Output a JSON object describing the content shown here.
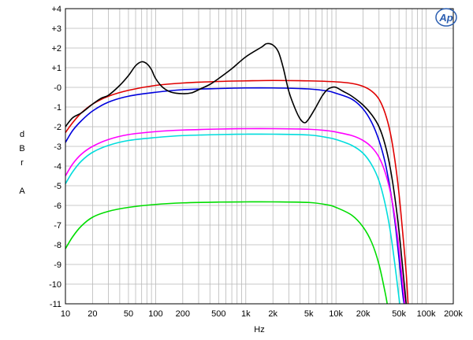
{
  "chart_data": {
    "type": "line",
    "title": "",
    "xlabel": "Hz",
    "ylabel": "dBr A",
    "ylabel_chars": [
      "d",
      "B",
      "r",
      "",
      "A"
    ],
    "logo": "Ap",
    "x_scale": "log",
    "xlim": [
      10,
      200000
    ],
    "ylim": [
      -11,
      4
    ],
    "grid": true,
    "x_ticks": [
      {
        "value": 10,
        "label": "10"
      },
      {
        "value": 20,
        "label": "20"
      },
      {
        "value": 50,
        "label": "50"
      },
      {
        "value": 100,
        "label": "100"
      },
      {
        "value": 200,
        "label": "200"
      },
      {
        "value": 500,
        "label": "500"
      },
      {
        "value": 1000,
        "label": "1k"
      },
      {
        "value": 2000,
        "label": "2k"
      },
      {
        "value": 5000,
        "label": "5k"
      },
      {
        "value": 10000,
        "label": "10k"
      },
      {
        "value": 20000,
        "label": "20k"
      },
      {
        "value": 50000,
        "label": "50k"
      },
      {
        "value": 100000,
        "label": "100k"
      },
      {
        "value": 200000,
        "label": "200k"
      }
    ],
    "y_ticks": [
      {
        "value": 4,
        "label": "+4"
      },
      {
        "value": 3,
        "label": "+3"
      },
      {
        "value": 2,
        "label": "+2"
      },
      {
        "value": 1,
        "label": "+1"
      },
      {
        "value": 0,
        "label": "-0"
      },
      {
        "value": -1,
        "label": "-1"
      },
      {
        "value": -2,
        "label": "-2"
      },
      {
        "value": -3,
        "label": "-3"
      },
      {
        "value": -4,
        "label": "-4"
      },
      {
        "value": -5,
        "label": "-5"
      },
      {
        "value": -6,
        "label": "-6"
      },
      {
        "value": -7,
        "label": "-7"
      },
      {
        "value": -8,
        "label": "-8"
      },
      {
        "value": -9,
        "label": "-9"
      },
      {
        "value": -10,
        "label": "-10"
      },
      {
        "value": -11,
        "label": "-11"
      }
    ],
    "series": [
      {
        "color": "#e00000",
        "points": [
          [
            10,
            -2.3
          ],
          [
            12,
            -1.8
          ],
          [
            15,
            -1.3
          ],
          [
            20,
            -0.85
          ],
          [
            30,
            -0.45
          ],
          [
            50,
            -0.15
          ],
          [
            100,
            0.1
          ],
          [
            200,
            0.22
          ],
          [
            500,
            0.3
          ],
          [
            1000,
            0.33
          ],
          [
            2000,
            0.35
          ],
          [
            5000,
            0.33
          ],
          [
            10000,
            0.28
          ],
          [
            15000,
            0.2
          ],
          [
            20000,
            0.05
          ],
          [
            25000,
            -0.2
          ],
          [
            30000,
            -0.6
          ],
          [
            35000,
            -1.3
          ],
          [
            40000,
            -2.3
          ],
          [
            45000,
            -3.7
          ],
          [
            50000,
            -5.4
          ],
          [
            55000,
            -7.4
          ],
          [
            60000,
            -9.4
          ],
          [
            63000,
            -11
          ]
        ]
      },
      {
        "color": "#0000dd",
        "points": [
          [
            10,
            -2.8
          ],
          [
            12,
            -2.2
          ],
          [
            15,
            -1.7
          ],
          [
            20,
            -1.2
          ],
          [
            30,
            -0.75
          ],
          [
            50,
            -0.45
          ],
          [
            100,
            -0.25
          ],
          [
            200,
            -0.12
          ],
          [
            500,
            -0.06
          ],
          [
            1000,
            -0.03
          ],
          [
            2000,
            -0.03
          ],
          [
            5000,
            -0.08
          ],
          [
            8000,
            -0.18
          ],
          [
            10000,
            -0.3
          ],
          [
            15000,
            -0.6
          ],
          [
            20000,
            -1.1
          ],
          [
            25000,
            -1.8
          ],
          [
            30000,
            -2.7
          ],
          [
            35000,
            -3.8
          ],
          [
            40000,
            -5.2
          ],
          [
            45000,
            -6.8
          ],
          [
            50000,
            -8.7
          ],
          [
            55000,
            -10.5
          ],
          [
            57000,
            -11
          ]
        ]
      },
      {
        "color": "#000000",
        "points": [
          [
            10,
            -2.0
          ],
          [
            12,
            -1.55
          ],
          [
            15,
            -1.3
          ],
          [
            20,
            -0.85
          ],
          [
            25,
            -0.55
          ],
          [
            30,
            -0.4
          ],
          [
            40,
            0.1
          ],
          [
            50,
            0.6
          ],
          [
            60,
            1.1
          ],
          [
            70,
            1.3
          ],
          [
            80,
            1.2
          ],
          [
            90,
            0.9
          ],
          [
            100,
            0.45
          ],
          [
            120,
            0.0
          ],
          [
            150,
            -0.25
          ],
          [
            200,
            -0.32
          ],
          [
            250,
            -0.28
          ],
          [
            300,
            -0.12
          ],
          [
            400,
            0.15
          ],
          [
            500,
            0.45
          ],
          [
            700,
            0.95
          ],
          [
            1000,
            1.55
          ],
          [
            1500,
            2.05
          ],
          [
            1700,
            2.22
          ],
          [
            2000,
            2.15
          ],
          [
            2300,
            1.8
          ],
          [
            2600,
            1.0
          ],
          [
            3000,
            -0.2
          ],
          [
            3500,
            -1.05
          ],
          [
            4000,
            -1.6
          ],
          [
            4500,
            -1.8
          ],
          [
            5000,
            -1.6
          ],
          [
            6000,
            -1.0
          ],
          [
            7000,
            -0.45
          ],
          [
            8000,
            -0.12
          ],
          [
            9000,
            0.0
          ],
          [
            10000,
            0.0
          ],
          [
            12000,
            -0.2
          ],
          [
            15000,
            -0.45
          ],
          [
            20000,
            -0.9
          ],
          [
            25000,
            -1.4
          ],
          [
            30000,
            -2.0
          ],
          [
            35000,
            -2.9
          ],
          [
            40000,
            -4.1
          ],
          [
            45000,
            -5.6
          ],
          [
            50000,
            -7.3
          ],
          [
            55000,
            -9.2
          ],
          [
            60000,
            -11
          ]
        ]
      },
      {
        "color": "#ff00ff",
        "points": [
          [
            10,
            -4.5
          ],
          [
            12,
            -3.9
          ],
          [
            15,
            -3.4
          ],
          [
            20,
            -3.0
          ],
          [
            30,
            -2.65
          ],
          [
            50,
            -2.4
          ],
          [
            100,
            -2.25
          ],
          [
            200,
            -2.17
          ],
          [
            500,
            -2.12
          ],
          [
            1000,
            -2.1
          ],
          [
            2000,
            -2.1
          ],
          [
            5000,
            -2.13
          ],
          [
            8000,
            -2.2
          ],
          [
            10000,
            -2.27
          ],
          [
            15000,
            -2.45
          ],
          [
            20000,
            -2.7
          ],
          [
            25000,
            -3.05
          ],
          [
            30000,
            -3.55
          ],
          [
            35000,
            -4.3
          ],
          [
            40000,
            -5.3
          ],
          [
            45000,
            -6.6
          ],
          [
            50000,
            -8.2
          ],
          [
            55000,
            -10.0
          ],
          [
            58000,
            -11
          ]
        ]
      },
      {
        "color": "#00dddd",
        "points": [
          [
            10,
            -4.9
          ],
          [
            12,
            -4.3
          ],
          [
            15,
            -3.75
          ],
          [
            20,
            -3.3
          ],
          [
            30,
            -2.95
          ],
          [
            50,
            -2.7
          ],
          [
            100,
            -2.55
          ],
          [
            200,
            -2.45
          ],
          [
            500,
            -2.4
          ],
          [
            1000,
            -2.38
          ],
          [
            2000,
            -2.38
          ],
          [
            5000,
            -2.42
          ],
          [
            8000,
            -2.55
          ],
          [
            10000,
            -2.65
          ],
          [
            15000,
            -2.95
          ],
          [
            20000,
            -3.35
          ],
          [
            25000,
            -3.95
          ],
          [
            30000,
            -4.75
          ],
          [
            35000,
            -5.9
          ],
          [
            40000,
            -7.3
          ],
          [
            45000,
            -9.0
          ],
          [
            50000,
            -10.7
          ],
          [
            51000,
            -11
          ]
        ]
      },
      {
        "color": "#00dd00",
        "points": [
          [
            10,
            -8.2
          ],
          [
            12,
            -7.6
          ],
          [
            15,
            -7.05
          ],
          [
            20,
            -6.6
          ],
          [
            30,
            -6.3
          ],
          [
            50,
            -6.1
          ],
          [
            100,
            -5.95
          ],
          [
            200,
            -5.87
          ],
          [
            500,
            -5.83
          ],
          [
            1000,
            -5.82
          ],
          [
            2000,
            -5.82
          ],
          [
            5000,
            -5.85
          ],
          [
            8000,
            -5.97
          ],
          [
            10000,
            -6.1
          ],
          [
            15000,
            -6.5
          ],
          [
            20000,
            -7.1
          ],
          [
            25000,
            -7.9
          ],
          [
            30000,
            -9.0
          ],
          [
            35000,
            -10.4
          ],
          [
            37000,
            -11
          ]
        ]
      }
    ]
  }
}
